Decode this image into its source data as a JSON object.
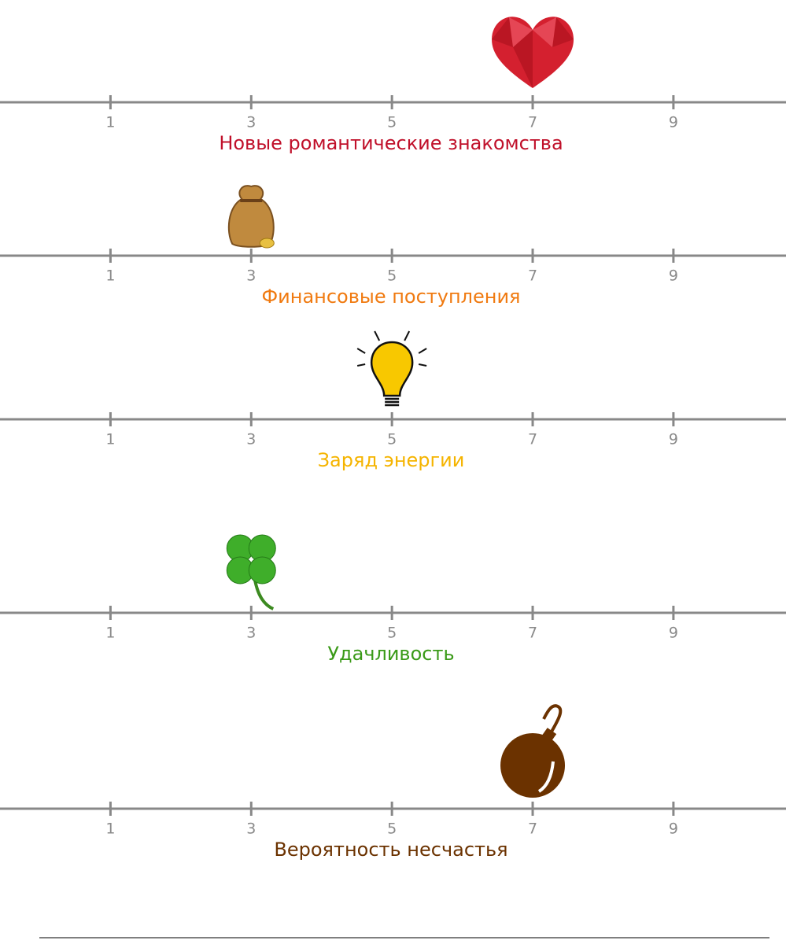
{
  "chart_data": [
    {
      "type": "scale",
      "title": "Новые романтические знакомства",
      "value": 7,
      "color": "#c0102a",
      "xlim": [
        -0.57,
        10.6
      ],
      "xticks": [
        1,
        3,
        5,
        7,
        9
      ]
    },
    {
      "type": "scale",
      "title": "Финансовые поступления",
      "value": 3,
      "color": "#f07a10",
      "xlim": [
        -0.57,
        10.6
      ],
      "xticks": [
        1,
        3,
        5,
        7,
        9
      ]
    },
    {
      "type": "scale",
      "title": "Заряд энергии",
      "value": 5,
      "color": "#f5b400",
      "xlim": [
        -0.57,
        10.6
      ],
      "xticks": [
        1,
        3,
        5,
        7,
        9
      ]
    },
    {
      "type": "scale",
      "title": "Удачливость",
      "value": 3,
      "color": "#3a9a18",
      "xlim": [
        -0.57,
        10.6
      ],
      "xticks": [
        1,
        3,
        5,
        7,
        9
      ]
    },
    {
      "type": "scale",
      "title": "Вероятность несчастья",
      "value": 7,
      "color": "#6b3200",
      "xlim": [
        -0.57,
        10.6
      ],
      "xticks": [
        1,
        3,
        5,
        7,
        9
      ]
    }
  ]
}
